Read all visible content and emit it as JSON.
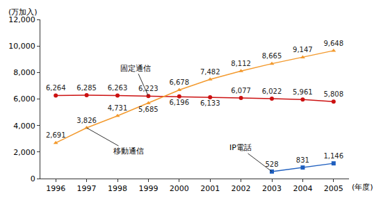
{
  "chart_data": {
    "type": "line",
    "categories": [
      "1996",
      "1997",
      "1998",
      "1999",
      "2000",
      "2001",
      "2002",
      "2003",
      "2004",
      "2005"
    ],
    "xlabel": "(年度)",
    "ylabel": "(万加入)",
    "ylim": [
      0,
      12000
    ],
    "yticks": [
      0,
      {
        "value": 2000,
        "label": "2,000"
      },
      {
        "value": 4000,
        "label": "4,000"
      },
      {
        "value": 6000,
        "label": "6,000"
      },
      {
        "value": 8000,
        "label": "8,000"
      },
      {
        "value": 10000,
        "label": "10,000"
      },
      {
        "value": 12000,
        "label": "12,000"
      }
    ],
    "grid": false,
    "data_labels": true,
    "series": [
      {
        "name": "固定通信",
        "color": "#cc1111",
        "marker": "circle",
        "values": [
          6264,
          6285,
          6263,
          6223,
          6196,
          6133,
          6077,
          6022,
          5961,
          5808
        ],
        "value_labels": [
          "6,264",
          "6,285",
          "6,263",
          "6,223",
          "6,196",
          "6,133",
          "6,077",
          "6,022",
          "5,961",
          "5,808"
        ]
      },
      {
        "name": "移動通信",
        "color": "#f39a2e",
        "marker": "triangle-up",
        "values": [
          2691,
          3826,
          4731,
          5685,
          6678,
          7482,
          8112,
          8665,
          9147,
          9648
        ],
        "value_labels": [
          "2,691",
          "3,826",
          "4,731",
          "5,685",
          "6,678",
          "7,482",
          "8,112",
          "8,665",
          "9,147",
          "9,648"
        ]
      },
      {
        "name": "IP電話",
        "color": "#1f5fbf",
        "marker": "square",
        "values": [
          null,
          null,
          null,
          null,
          null,
          null,
          null,
          528,
          831,
          1146
        ],
        "value_labels": [
          null,
          null,
          null,
          null,
          null,
          null,
          null,
          "528",
          "831",
          "1,146"
        ]
      }
    ]
  }
}
